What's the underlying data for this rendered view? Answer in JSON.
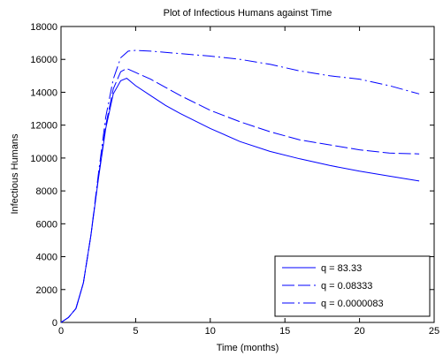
{
  "chart_data": {
    "type": "line",
    "title": "Plot of Infectious Humans against Time",
    "xlabel": "Time (months)",
    "ylabel": "Infectious Humans",
    "xlim": [
      0,
      25
    ],
    "ylim": [
      0,
      18000
    ],
    "xticks": [
      0,
      5,
      10,
      15,
      20,
      25
    ],
    "yticks": [
      0,
      2000,
      4000,
      6000,
      8000,
      10000,
      12000,
      14000,
      16000,
      18000
    ],
    "grid": false,
    "legend_position": "bottom-right",
    "line_color": "#0000ff",
    "series": [
      {
        "name": "q = 83.33",
        "dash": "solid",
        "x": [
          0,
          0.5,
          1,
          1.5,
          2,
          2.5,
          3,
          3.5,
          4,
          4.4,
          5,
          6,
          7,
          8,
          10,
          12,
          14,
          16,
          18,
          20,
          22,
          24
        ],
        "y": [
          0,
          300,
          850,
          2400,
          5300,
          8700,
          11800,
          13900,
          14700,
          14850,
          14400,
          13800,
          13200,
          12700,
          11800,
          11000,
          10400,
          9950,
          9550,
          9200,
          8900,
          8600
        ]
      },
      {
        "name": "q = 0.08333",
        "dash": "long-dash",
        "x": [
          0,
          0.5,
          1,
          1.5,
          2,
          2.5,
          3,
          3.5,
          4,
          4.4,
          5,
          6,
          7,
          8,
          10,
          12,
          14,
          16,
          18,
          20,
          22,
          24
        ],
        "y": [
          0,
          300,
          850,
          2400,
          5300,
          8800,
          12000,
          14200,
          15250,
          15450,
          15200,
          14800,
          14300,
          13800,
          12900,
          12200,
          11600,
          11100,
          10800,
          10500,
          10300,
          10250
        ]
      },
      {
        "name": "q = 0.0000083",
        "dash": "dash-dot",
        "x": [
          0,
          0.5,
          1,
          1.5,
          2,
          2.5,
          3,
          3.5,
          4,
          4.5,
          5,
          6,
          8,
          10,
          12,
          14,
          16,
          18,
          20,
          22,
          24
        ],
        "y": [
          0,
          300,
          850,
          2400,
          5300,
          9000,
          12500,
          14800,
          16100,
          16500,
          16550,
          16500,
          16350,
          16200,
          16000,
          15700,
          15300,
          15000,
          14800,
          14400,
          13900
        ]
      }
    ]
  }
}
